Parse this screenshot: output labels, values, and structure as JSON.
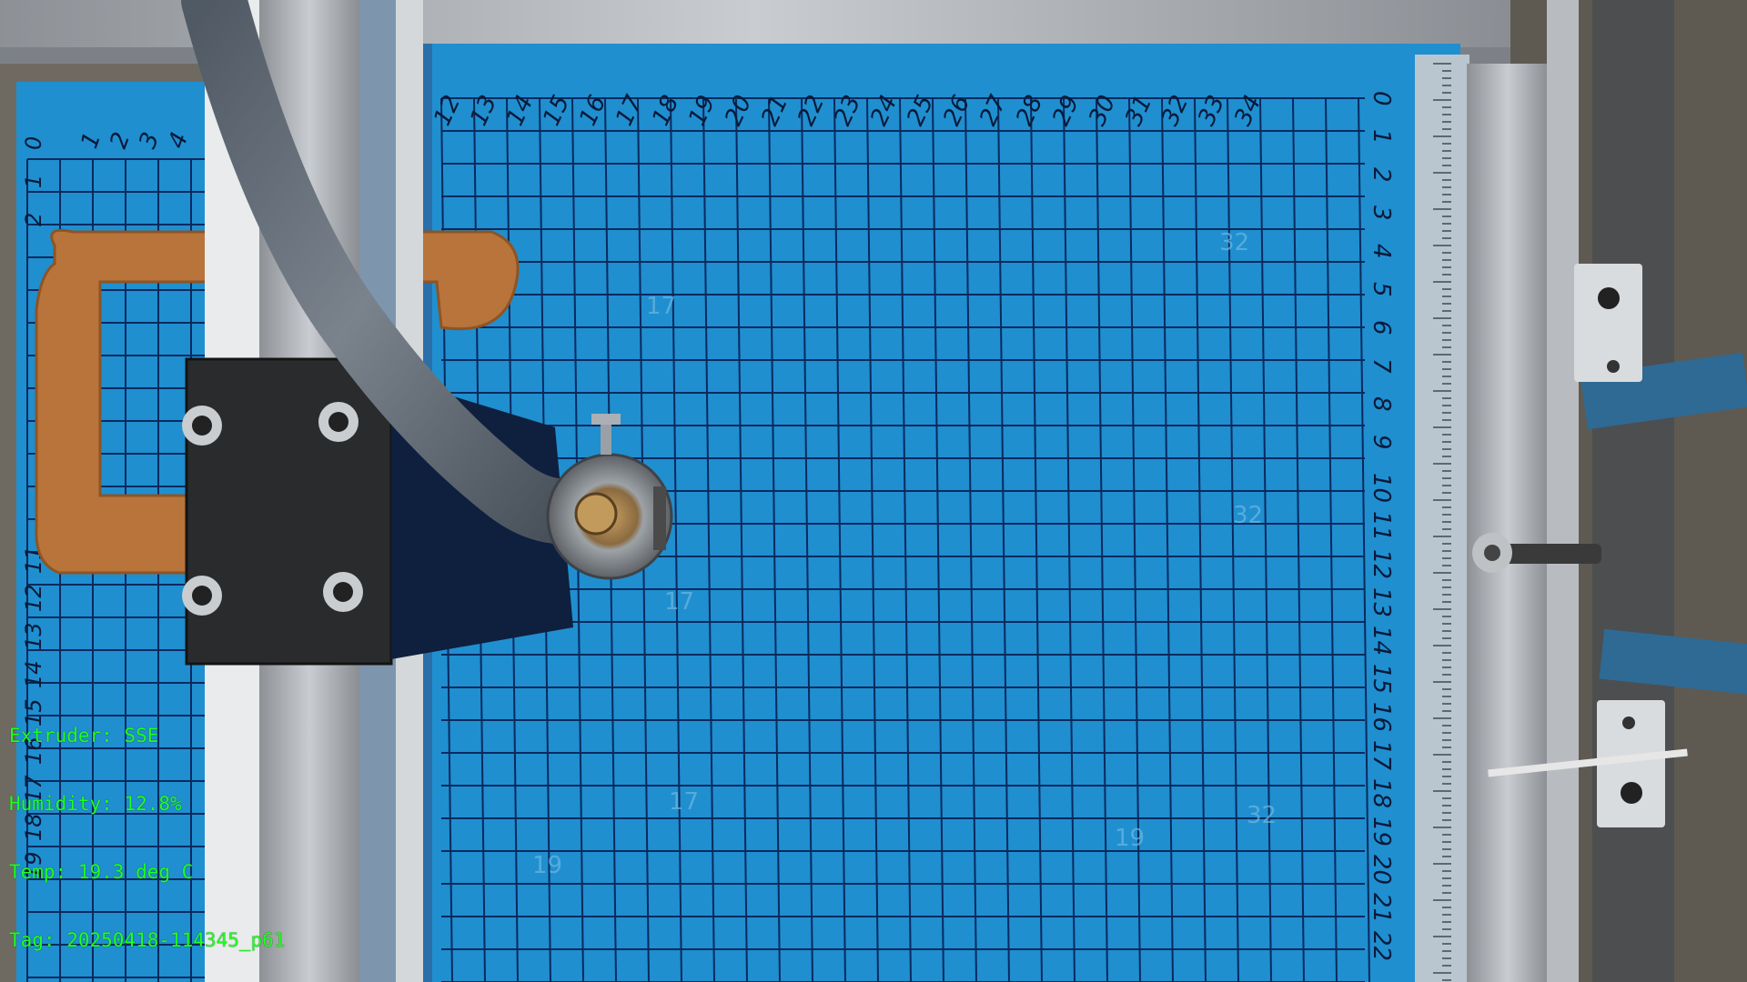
{
  "overlay": {
    "extruder": "Extruder: SSE",
    "humidity": "Humidity: 12.8%",
    "temp": "Temp: 19.3 deg C",
    "tag": "Tag: 20250418-114345_p61"
  },
  "grid_labels": {
    "top": [
      "12",
      "13",
      "14",
      "15",
      "16",
      "17",
      "18",
      "19",
      "20",
      "21",
      "22",
      "23",
      "24",
      "25",
      "26",
      "27",
      "28",
      "29",
      "30",
      "31",
      "32",
      "33",
      "34"
    ],
    "right": [
      "0",
      "1",
      "2",
      "3",
      "4",
      "5",
      "6",
      "7",
      "8",
      "9",
      "10",
      "11",
      "12",
      "13",
      "14",
      "15",
      "16",
      "17",
      "18",
      "19",
      "20",
      "21",
      "22"
    ],
    "left_top": [
      "1",
      "2",
      "3",
      "4"
    ],
    "left_side": [
      "0",
      "1",
      "2",
      "11",
      "12",
      "13",
      "14",
      "15",
      "16",
      "17",
      "18",
      "19"
    ]
  },
  "colors": {
    "bed_blue": "#1f8fd0",
    "grid_line": "#0a2a5e",
    "frame_steel": "#a9adb1",
    "material": "#b8743a",
    "overlay_text": "#22ff22"
  }
}
